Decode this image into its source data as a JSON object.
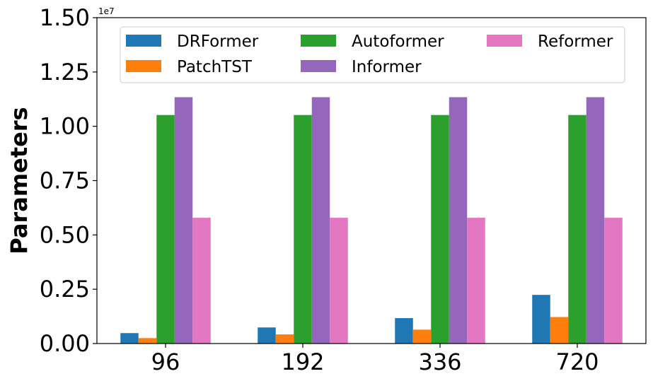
{
  "chart_data": {
    "type": "bar",
    "title": "",
    "xlabel": "",
    "ylabel": "Parameters",
    "y_offset_label": "1e7",
    "ylim": [
      0,
      15000000
    ],
    "y_ticks": [
      0,
      2500000,
      5000000,
      7500000,
      10000000,
      12500000,
      15000000
    ],
    "y_tick_labels": [
      "0.00",
      "0.25",
      "0.50",
      "0.75",
      "1.00",
      "1.25",
      "1.50"
    ],
    "categories": [
      "96",
      "192",
      "336",
      "720"
    ],
    "legend_position": "top-center",
    "grid": false,
    "series": [
      {
        "name": "DRFormer",
        "color": "#1f77b4",
        "values": [
          480000,
          740000,
          1170000,
          2240000
        ]
      },
      {
        "name": "PatchTST",
        "color": "#ff7f0e",
        "values": [
          250000,
          420000,
          640000,
          1220000
        ]
      },
      {
        "name": "Autoformer",
        "color": "#2ca02c",
        "values": [
          10520000,
          10520000,
          10520000,
          10520000
        ]
      },
      {
        "name": "Informer",
        "color": "#9467bd",
        "values": [
          11340000,
          11340000,
          11340000,
          11340000
        ]
      },
      {
        "name": "Reformer",
        "color": "#e377c2",
        "values": [
          5790000,
          5790000,
          5790000,
          5790000
        ]
      }
    ]
  }
}
